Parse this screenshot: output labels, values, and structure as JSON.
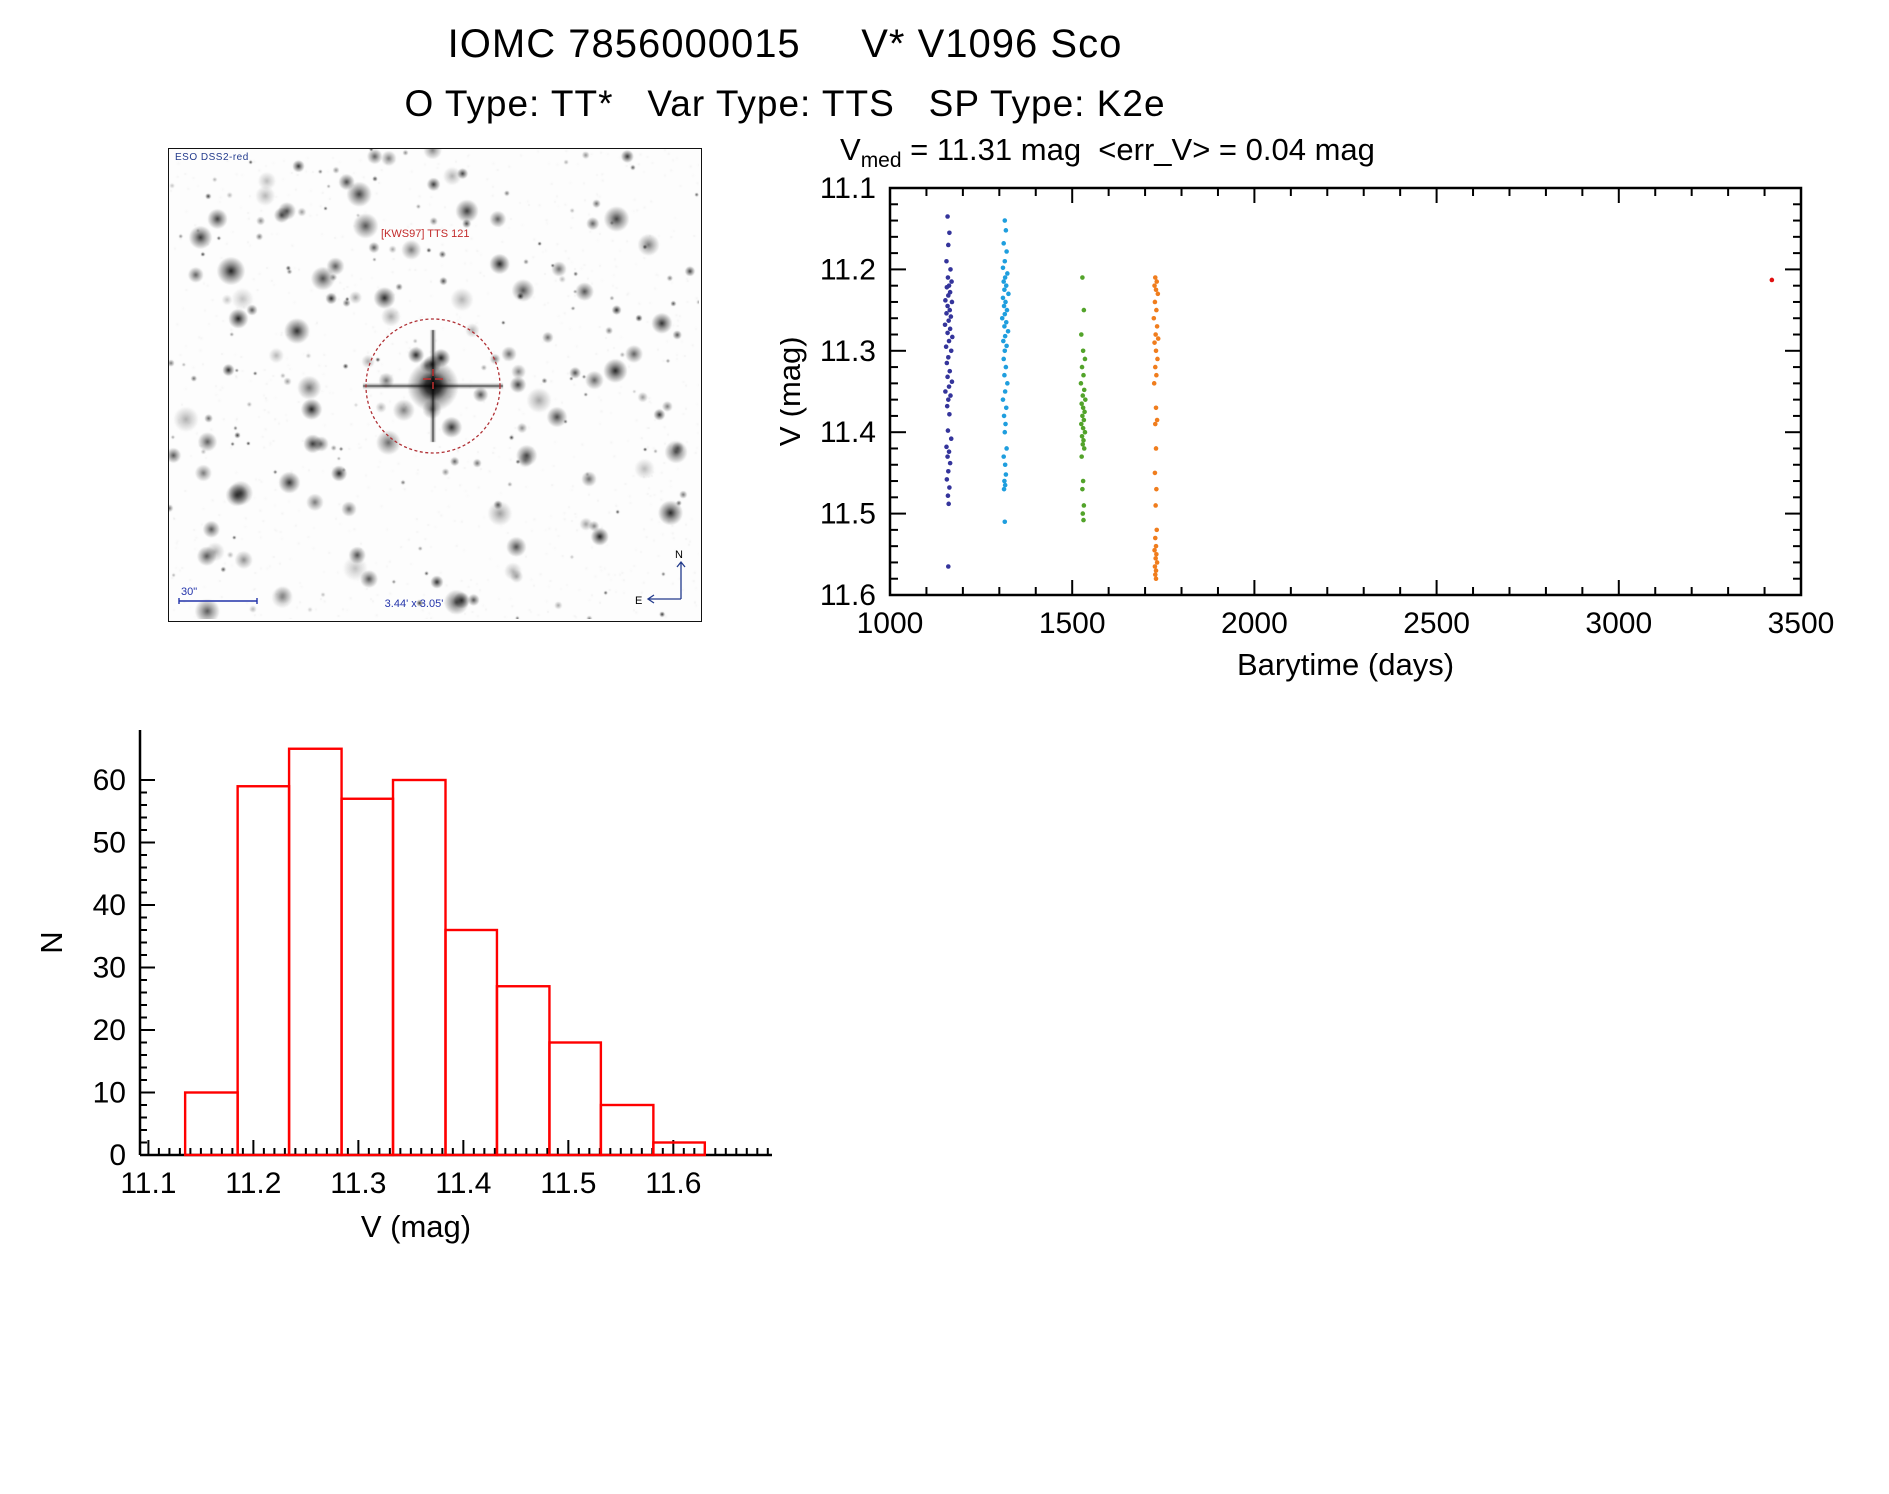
{
  "page": {
    "title": "IOMC 7856000015     V* V1096 Sco",
    "subtitle": "O Type: TT*   Var Type: TTS   SP Type: K2e"
  },
  "finding_chart": {
    "survey_label": "ESO DSS2-red",
    "target_label": "[KWS97] TTS 121",
    "scale_label": "30\"",
    "fov_label": "3.44' x 3.05'",
    "compass_north": "N",
    "compass_east": "E",
    "circle_color": "#b03035",
    "annotation_blue": "#2233aa",
    "annotation_red": "#c22a2a"
  },
  "chart_data": [
    {
      "type": "scatter",
      "title": "Vmed = 11.31 mag <err_V> = 0.04 mag",
      "title_v": "V",
      "title_sub": "med",
      "title_rest": " = 11.31 mag  <err_V> = 0.04 mag",
      "xlabel": "Barytime (days)",
      "ylabel": "V (mag)",
      "xlim": [
        1000,
        3500
      ],
      "ylim": [
        11.1,
        11.6
      ],
      "y_inverted_magnitude_axis": true,
      "xticks": [
        1000,
        1500,
        2000,
        2500,
        3000,
        3500
      ],
      "xtick_labels": [
        "1000",
        "1500",
        "2000",
        "2500",
        "3000",
        "3500"
      ],
      "yticks": [
        11.1,
        11.2,
        11.3,
        11.4,
        11.5,
        11.6
      ],
      "ytick_labels": [
        "11.1",
        "11.2",
        "11.3",
        "11.4",
        "11.5",
        "11.6"
      ],
      "x_minor_step": 100,
      "y_minor_step": 0.02,
      "grid": false,
      "series": [
        {
          "name": "epoch-1",
          "color": "#34349b",
          "points": [
            [
              1158,
              11.135
            ],
            [
              1163,
              11.155
            ],
            [
              1160,
              11.17
            ],
            [
              1155,
              11.19
            ],
            [
              1166,
              11.2
            ],
            [
              1159,
              11.21
            ],
            [
              1169,
              11.215
            ],
            [
              1162,
              11.22
            ],
            [
              1156,
              11.222
            ],
            [
              1165,
              11.228
            ],
            [
              1160,
              11.232
            ],
            [
              1152,
              11.238
            ],
            [
              1170,
              11.24
            ],
            [
              1158,
              11.245
            ],
            [
              1164,
              11.25
            ],
            [
              1155,
              11.254
            ],
            [
              1167,
              11.258
            ],
            [
              1161,
              11.263
            ],
            [
              1151,
              11.268
            ],
            [
              1165,
              11.273
            ],
            [
              1158,
              11.278
            ],
            [
              1171,
              11.283
            ],
            [
              1162,
              11.288
            ],
            [
              1154,
              11.295
            ],
            [
              1168,
              11.3
            ],
            [
              1160,
              11.308
            ],
            [
              1156,
              11.315
            ],
            [
              1164,
              11.325
            ],
            [
              1158,
              11.332
            ],
            [
              1170,
              11.338
            ],
            [
              1162,
              11.344
            ],
            [
              1152,
              11.35
            ],
            [
              1166,
              11.355
            ],
            [
              1160,
              11.36
            ],
            [
              1157,
              11.368
            ],
            [
              1163,
              11.378
            ],
            [
              1159,
              11.398
            ],
            [
              1168,
              11.408
            ],
            [
              1155,
              11.418
            ],
            [
              1162,
              11.424
            ],
            [
              1158,
              11.43
            ],
            [
              1165,
              11.438
            ],
            [
              1160,
              11.448
            ],
            [
              1156,
              11.458
            ],
            [
              1163,
              11.468
            ],
            [
              1159,
              11.478
            ],
            [
              1161,
              11.488
            ],
            [
              1160,
              11.565
            ]
          ]
        },
        {
          "name": "epoch-2",
          "color": "#1f9ede",
          "points": [
            [
              1315,
              11.14
            ],
            [
              1318,
              11.152
            ],
            [
              1312,
              11.168
            ],
            [
              1320,
              11.178
            ],
            [
              1315,
              11.19
            ],
            [
              1310,
              11.198
            ],
            [
              1322,
              11.205
            ],
            [
              1316,
              11.21
            ],
            [
              1312,
              11.215
            ],
            [
              1319,
              11.22
            ],
            [
              1314,
              11.225
            ],
            [
              1325,
              11.23
            ],
            [
              1310,
              11.235
            ],
            [
              1317,
              11.24
            ],
            [
              1313,
              11.245
            ],
            [
              1321,
              11.25
            ],
            [
              1315,
              11.255
            ],
            [
              1308,
              11.26
            ],
            [
              1319,
              11.265
            ],
            [
              1314,
              11.27
            ],
            [
              1324,
              11.276
            ],
            [
              1316,
              11.282
            ],
            [
              1311,
              11.288
            ],
            [
              1320,
              11.294
            ],
            [
              1315,
              11.3
            ],
            [
              1312,
              11.31
            ],
            [
              1318,
              11.32
            ],
            [
              1314,
              11.33
            ],
            [
              1322,
              11.34
            ],
            [
              1316,
              11.35
            ],
            [
              1310,
              11.36
            ],
            [
              1319,
              11.37
            ],
            [
              1313,
              11.38
            ],
            [
              1317,
              11.39
            ],
            [
              1315,
              11.4
            ],
            [
              1320,
              11.42
            ],
            [
              1312,
              11.43
            ],
            [
              1316,
              11.44
            ],
            [
              1318,
              11.452
            ],
            [
              1314,
              11.46
            ],
            [
              1316,
              11.465
            ],
            [
              1313,
              11.47
            ],
            [
              1315,
              11.51
            ]
          ]
        },
        {
          "name": "epoch-3",
          "color": "#52a32a",
          "points": [
            [
              1528,
              11.21
            ],
            [
              1532,
              11.25
            ],
            [
              1525,
              11.28
            ],
            [
              1530,
              11.3
            ],
            [
              1535,
              11.31
            ],
            [
              1527,
              11.32
            ],
            [
              1531,
              11.33
            ],
            [
              1524,
              11.34
            ],
            [
              1533,
              11.348
            ],
            [
              1529,
              11.355
            ],
            [
              1536,
              11.36
            ],
            [
              1526,
              11.365
            ],
            [
              1530,
              11.37
            ],
            [
              1534,
              11.375
            ],
            [
              1528,
              11.38
            ],
            [
              1532,
              11.385
            ],
            [
              1525,
              11.39
            ],
            [
              1530,
              11.395
            ],
            [
              1535,
              11.4
            ],
            [
              1527,
              11.405
            ],
            [
              1531,
              11.41
            ],
            [
              1529,
              11.415
            ],
            [
              1533,
              11.42
            ],
            [
              1526,
              11.43
            ],
            [
              1530,
              11.46
            ],
            [
              1528,
              11.47
            ],
            [
              1532,
              11.49
            ],
            [
              1529,
              11.5
            ],
            [
              1531,
              11.508
            ]
          ]
        },
        {
          "name": "epoch-4",
          "color": "#f07d1d",
          "points": [
            [
              1728,
              11.21
            ],
            [
              1732,
              11.215
            ],
            [
              1726,
              11.22
            ],
            [
              1730,
              11.225
            ],
            [
              1735,
              11.23
            ],
            [
              1727,
              11.24
            ],
            [
              1731,
              11.25
            ],
            [
              1724,
              11.26
            ],
            [
              1733,
              11.27
            ],
            [
              1729,
              11.28
            ],
            [
              1736,
              11.285
            ],
            [
              1726,
              11.29
            ],
            [
              1730,
              11.3
            ],
            [
              1734,
              11.31
            ],
            [
              1728,
              11.32
            ],
            [
              1731,
              11.33
            ],
            [
              1725,
              11.34
            ],
            [
              1730,
              11.37
            ],
            [
              1733,
              11.385
            ],
            [
              1728,
              11.39
            ],
            [
              1730,
              11.42
            ],
            [
              1727,
              11.45
            ],
            [
              1731,
              11.47
            ],
            [
              1729,
              11.49
            ],
            [
              1732,
              11.52
            ],
            [
              1728,
              11.53
            ],
            [
              1730,
              11.54
            ],
            [
              1726,
              11.545
            ],
            [
              1731,
              11.55
            ],
            [
              1729,
              11.555
            ],
            [
              1733,
              11.56
            ],
            [
              1727,
              11.565
            ],
            [
              1730,
              11.57
            ],
            [
              1728,
              11.575
            ],
            [
              1730,
              11.58
            ]
          ]
        },
        {
          "name": "epoch-5",
          "color": "#e01010",
          "points": [
            [
              3420,
              11.213
            ]
          ]
        }
      ]
    },
    {
      "type": "bar",
      "title": "",
      "xlabel": "V (mag)",
      "ylabel": "N",
      "bar_color": "#ff0000",
      "xlim": [
        11.092,
        11.694
      ],
      "ylim": [
        0,
        68
      ],
      "xticks": [
        11.1,
        11.2,
        11.3,
        11.4,
        11.5,
        11.6
      ],
      "xtick_labels": [
        "11.1",
        "11.2",
        "11.3",
        "11.4",
        "11.5",
        "11.6"
      ],
      "yticks": [
        0,
        10,
        20,
        30,
        40,
        50,
        60
      ],
      "ytick_labels": [
        "0",
        "10",
        "20",
        "30",
        "40",
        "50",
        "60"
      ],
      "x_minor_step": 0.01,
      "y_minor_step": 2,
      "bin_edges": [
        11.135,
        11.185,
        11.234,
        11.284,
        11.333,
        11.383,
        11.432,
        11.482,
        11.531,
        11.581,
        11.63
      ],
      "counts": [
        10,
        59,
        65,
        57,
        60,
        36,
        27,
        18,
        8,
        2
      ],
      "grid": false
    }
  ]
}
